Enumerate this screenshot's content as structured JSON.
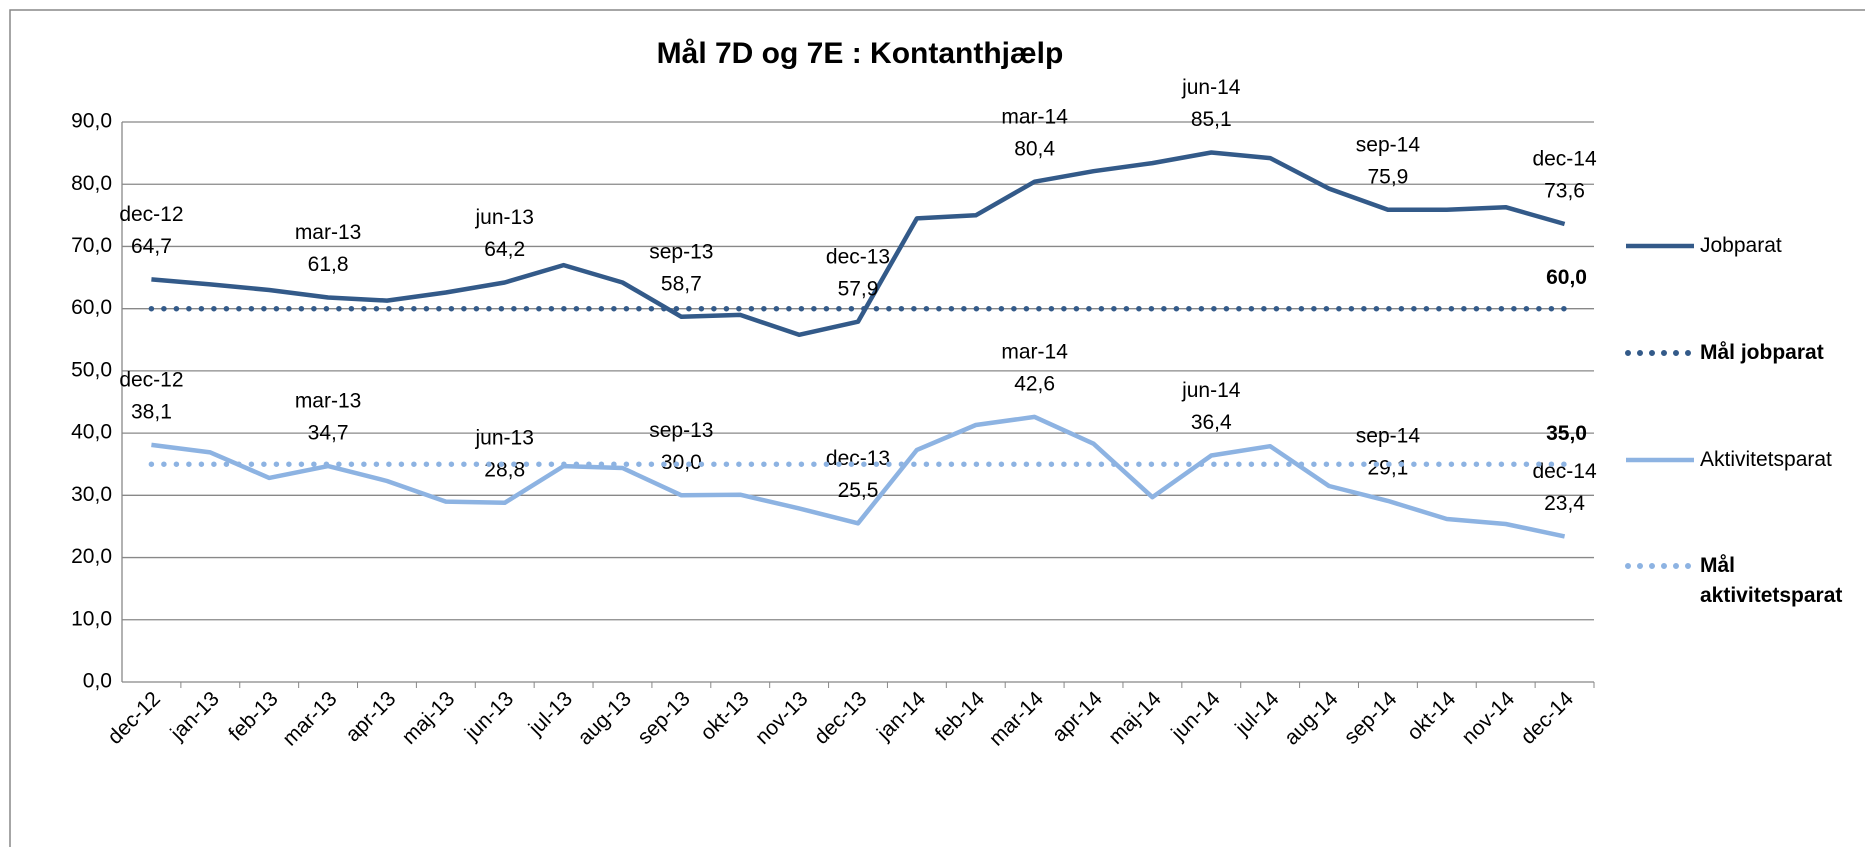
{
  "chart_data": {
    "type": "line",
    "title": "Mål 7D og 7E : Kontanthjælp",
    "categories": [
      "dec-12",
      "jan-13",
      "feb-13",
      "mar-13",
      "apr-13",
      "maj-13",
      "jun-13",
      "jul-13",
      "aug-13",
      "sep-13",
      "okt-13",
      "nov-13",
      "dec-13",
      "jan-14",
      "feb-14",
      "mar-14",
      "apr-14",
      "maj-14",
      "jun-14",
      "jul-14",
      "aug-14",
      "sep-14",
      "okt-14",
      "nov-14",
      "dec-14"
    ],
    "ylim": [
      0,
      90
    ],
    "yticks": [
      {
        "value": 0,
        "label": "0,0"
      },
      {
        "value": 10,
        "label": "10,0"
      },
      {
        "value": 20,
        "label": "20,0"
      },
      {
        "value": 30,
        "label": "30,0"
      },
      {
        "value": 40,
        "label": "40,0"
      },
      {
        "value": 50,
        "label": "50,0"
      },
      {
        "value": 60,
        "label": "60,0"
      },
      {
        "value": 70,
        "label": "70,0"
      },
      {
        "value": 80,
        "label": "80,0"
      },
      {
        "value": 90,
        "label": "90,0"
      }
    ],
    "grid": true,
    "legend": "right",
    "series": [
      {
        "name": "Jobparat",
        "color": "#335a89",
        "style": "solid",
        "values": [
          64.7,
          63.9,
          63.0,
          61.8,
          61.3,
          62.6,
          64.2,
          67.0,
          64.2,
          58.7,
          59.0,
          55.8,
          57.9,
          74.5,
          75.0,
          80.4,
          82.1,
          83.4,
          85.1,
          84.2,
          79.3,
          75.9,
          75.9,
          76.3,
          73.6
        ],
        "value_labels": [
          "64,7",
          null,
          null,
          "61,8",
          null,
          null,
          "64,2",
          null,
          null,
          "58,7",
          null,
          null,
          "57,9",
          null,
          null,
          "80,4",
          null,
          null,
          "85,1",
          null,
          null,
          "75,9",
          null,
          null,
          "73,6"
        ]
      },
      {
        "name": "Mål jobparat",
        "color": "#335a89",
        "style": "dotted",
        "values": [
          60,
          60,
          60,
          60,
          60,
          60,
          60,
          60,
          60,
          60,
          60,
          60,
          60,
          60,
          60,
          60,
          60,
          60,
          60,
          60,
          60,
          60,
          60,
          60,
          60
        ],
        "value_labels": [
          null,
          null,
          null,
          null,
          null,
          null,
          null,
          null,
          null,
          null,
          null,
          null,
          null,
          null,
          null,
          null,
          null,
          null,
          null,
          null,
          null,
          null,
          null,
          null,
          "60,0"
        ]
      },
      {
        "name": "Aktivitetsparat",
        "color": "#8db3e2",
        "style": "solid",
        "values": [
          38.1,
          36.9,
          32.8,
          34.7,
          32.3,
          29.0,
          28.8,
          34.7,
          34.4,
          30.0,
          30.1,
          27.9,
          25.5,
          37.3,
          41.3,
          42.6,
          38.3,
          29.7,
          36.4,
          37.9,
          31.5,
          29.1,
          26.2,
          25.4,
          23.4
        ],
        "value_labels": [
          "38,1",
          null,
          null,
          "34,7",
          null,
          null,
          "28,8",
          null,
          null,
          "30,0",
          null,
          null,
          "25,5",
          null,
          null,
          "42,6",
          null,
          null,
          "36,4",
          null,
          null,
          "29,1",
          null,
          null,
          "23,4"
        ]
      },
      {
        "name": "Mål aktivitetsparat",
        "color": "#8db3e2",
        "style": "dotted",
        "values": [
          35,
          35,
          35,
          35,
          35,
          35,
          35,
          35,
          35,
          35,
          35,
          35,
          35,
          35,
          35,
          35,
          35,
          35,
          35,
          35,
          35,
          35,
          35,
          35,
          35
        ],
        "value_labels": [
          null,
          null,
          null,
          null,
          null,
          null,
          null,
          null,
          null,
          null,
          null,
          null,
          null,
          null,
          null,
          null,
          null,
          null,
          null,
          null,
          null,
          null,
          null,
          null,
          "35,0"
        ]
      }
    ]
  }
}
